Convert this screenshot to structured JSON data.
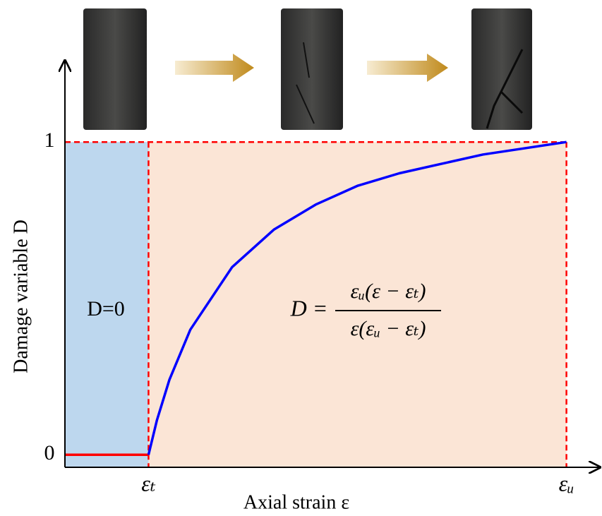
{
  "chart_data": {
    "type": "line",
    "y_label": "Damage variable D",
    "x_label": "Axial strain ε",
    "annotations": {
      "region_label": "D=0",
      "formula_lhs": "D =",
      "formula_numerator": "εᵤ(ε − εₜ)",
      "formula_denominator": "ε(εᵤ − εₜ)"
    },
    "series": [
      {
        "color": "#ff0000",
        "x": [
          0,
          1
        ],
        "values": [
          0,
          0
        ]
      },
      {
        "color": "#0000ff",
        "x": [
          1,
          1.1,
          1.25,
          1.5,
          2,
          2.5,
          3,
          3.5,
          4,
          4.5,
          5,
          5.5,
          6
        ],
        "values": [
          0,
          0.11,
          0.24,
          0.4,
          0.6,
          0.72,
          0.8,
          0.86,
          0.9,
          0.93,
          0.96,
          0.98,
          1
        ]
      }
    ],
    "xlim": [
      0,
      6.4
    ],
    "ylim": [
      -0.04,
      1.26
    ],
    "xticks": [
      {
        "value": 1,
        "label": "εₜ"
      },
      {
        "value": 6,
        "label": "εᵤ"
      }
    ],
    "yticks": [
      0,
      1
    ],
    "region_colors": [
      "#bdd7ee",
      "#fbe5d6"
    ],
    "guide_color": "#ff0000"
  }
}
